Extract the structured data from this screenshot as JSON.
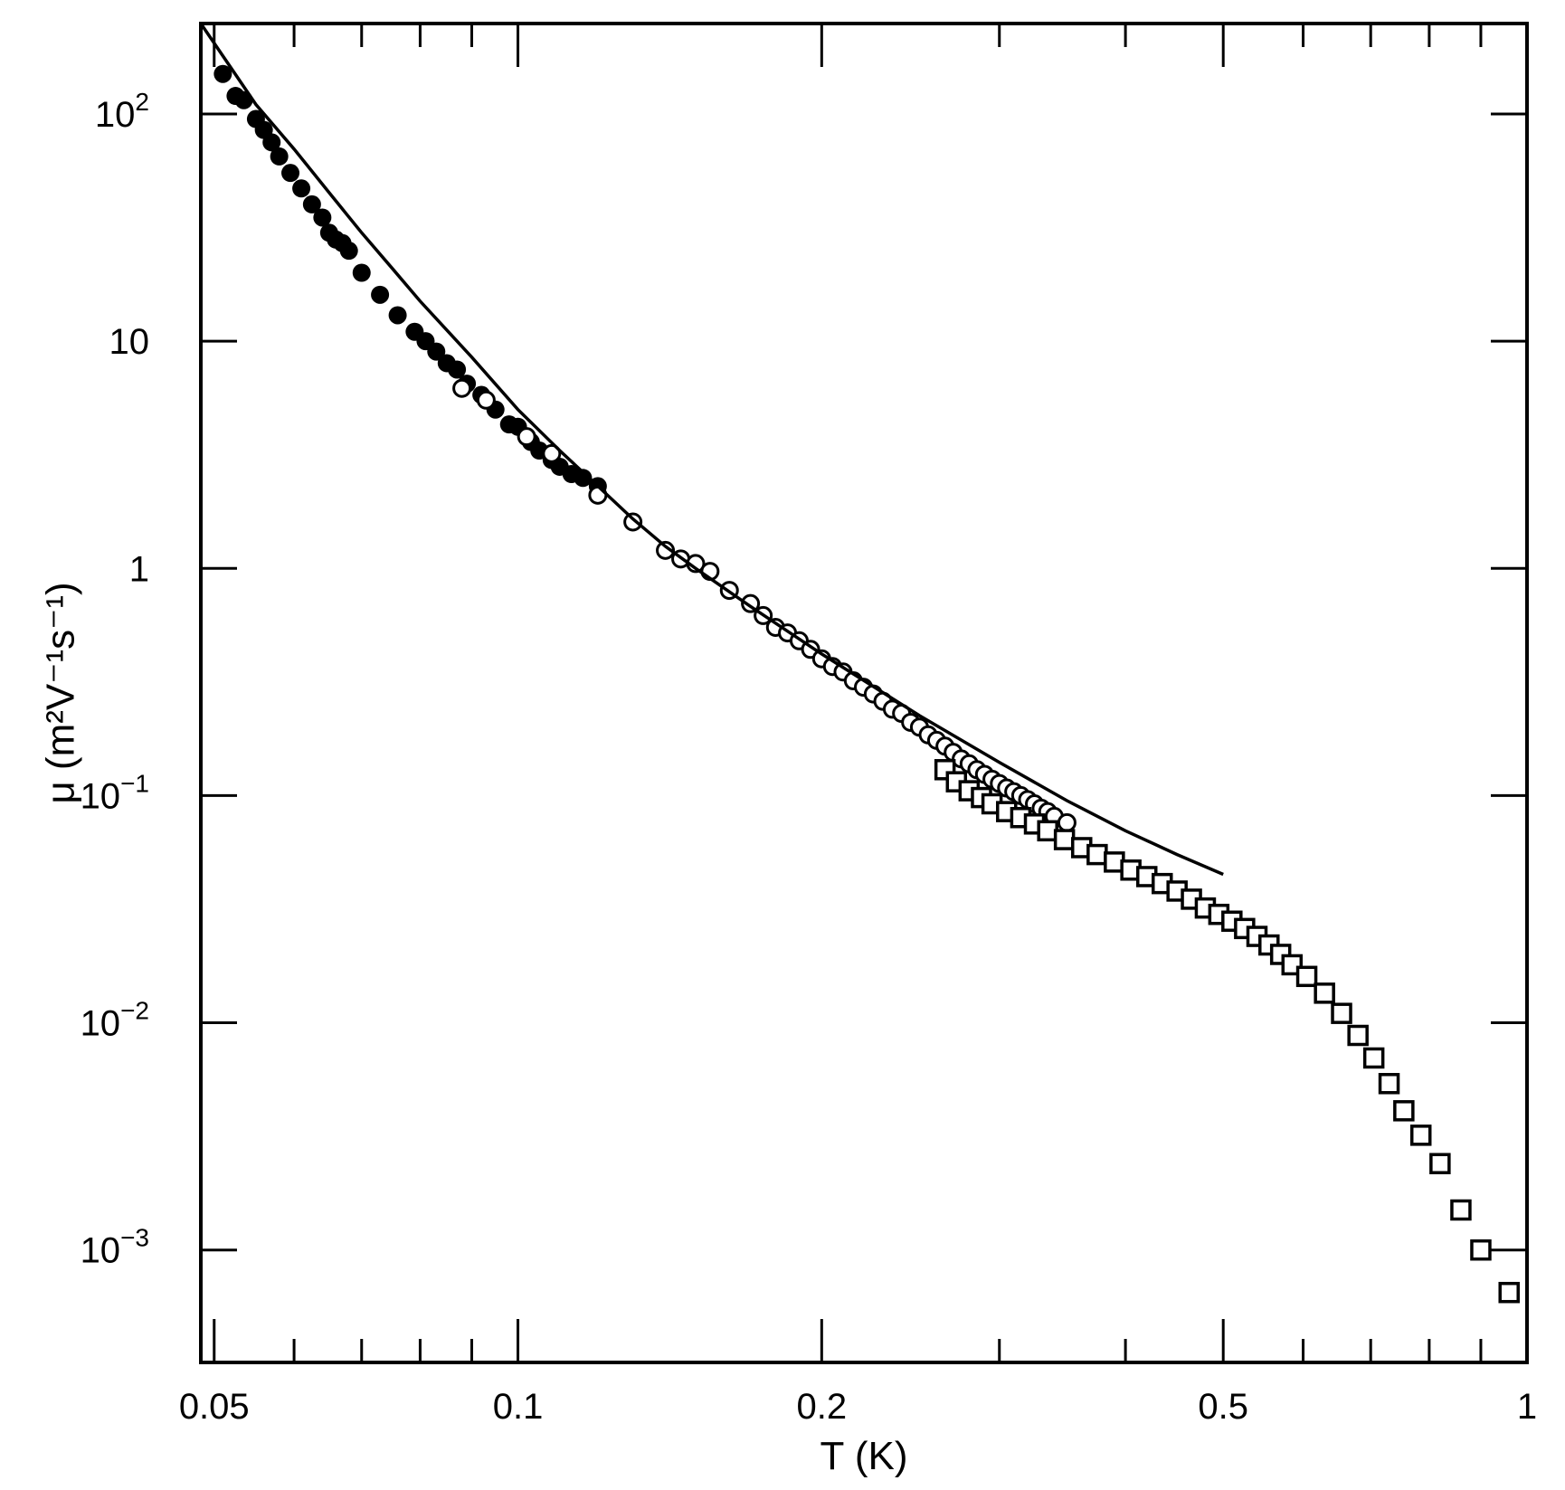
{
  "chart_data": {
    "type": "scatter",
    "title": "",
    "xlabel": "T (K)",
    "ylabel": "μ (m²V⁻¹s⁻¹)",
    "xscale": "log",
    "yscale": "log",
    "xlim": [
      0.0485,
      1.0
    ],
    "ylim": [
      0.00032,
      250
    ],
    "grid": false,
    "x_ticks": [
      {
        "value": 0.05,
        "label": "0.05"
      },
      {
        "value": 0.1,
        "label": "0.1"
      },
      {
        "value": 0.2,
        "label": "0.2"
      },
      {
        "value": 0.5,
        "label": "0.5"
      },
      {
        "value": 1.0,
        "label": "1"
      }
    ],
    "x_minor_ticks": [
      0.06,
      0.07,
      0.08,
      0.09,
      0.3,
      0.4,
      0.6,
      0.7,
      0.8,
      0.9
    ],
    "y_ticks": [
      {
        "value": 100,
        "base": "10",
        "exp": "2"
      },
      {
        "value": 10,
        "base": "10",
        "exp": ""
      },
      {
        "value": 1,
        "base": "1",
        "exp": ""
      },
      {
        "value": 0.1,
        "base": "10",
        "exp": "−1"
      },
      {
        "value": 0.01,
        "base": "10",
        "exp": "−2"
      },
      {
        "value": 0.001,
        "base": "10",
        "exp": "−3"
      }
    ],
    "series": [
      {
        "marker": "filled-circle",
        "x": [
          0.051,
          0.0525,
          0.0535,
          0.055,
          0.056,
          0.057,
          0.058,
          0.0595,
          0.061,
          0.0625,
          0.064,
          0.065,
          0.066,
          0.067,
          0.068,
          0.07,
          0.073,
          0.076,
          0.079,
          0.081,
          0.083,
          0.085,
          0.087,
          0.089,
          0.092,
          0.095,
          0.098,
          0.1,
          0.103,
          0.105,
          0.108,
          0.11,
          0.113,
          0.116,
          0.12
        ],
        "y": [
          150,
          120,
          115,
          95,
          85,
          75,
          65,
          55,
          47,
          40,
          35,
          30,
          28,
          27,
          25,
          20,
          16,
          13,
          11,
          10,
          9,
          8,
          7.5,
          6.5,
          5.8,
          5.0,
          4.3,
          4.2,
          3.6,
          3.3,
          3.0,
          2.8,
          2.6,
          2.5,
          2.3
        ]
      },
      {
        "marker": "open-circle",
        "x": [
          0.088,
          0.093,
          0.102,
          0.108,
          0.12,
          0.13,
          0.14,
          0.145,
          0.15,
          0.155,
          0.162,
          0.17,
          0.175,
          0.18,
          0.185,
          0.19,
          0.195,
          0.2,
          0.205,
          0.21,
          0.215,
          0.22,
          0.225,
          0.23,
          0.235,
          0.24,
          0.245,
          0.25,
          0.255,
          0.26,
          0.265,
          0.27,
          0.275,
          0.28,
          0.285,
          0.29,
          0.295,
          0.3,
          0.305,
          0.31,
          0.315,
          0.32,
          0.325,
          0.33,
          0.335,
          0.34,
          0.35
        ],
        "y": [
          6.2,
          5.5,
          3.8,
          3.2,
          2.1,
          1.6,
          1.2,
          1.1,
          1.05,
          0.97,
          0.8,
          0.7,
          0.62,
          0.55,
          0.52,
          0.48,
          0.44,
          0.4,
          0.37,
          0.35,
          0.32,
          0.3,
          0.28,
          0.26,
          0.24,
          0.23,
          0.21,
          0.2,
          0.185,
          0.175,
          0.165,
          0.155,
          0.145,
          0.138,
          0.13,
          0.124,
          0.118,
          0.113,
          0.108,
          0.104,
          0.1,
          0.096,
          0.092,
          0.088,
          0.085,
          0.081,
          0.076
        ]
      },
      {
        "marker": "open-square",
        "x": [
          0.265,
          0.272,
          0.28,
          0.288,
          0.295,
          0.305,
          0.315,
          0.325,
          0.335,
          0.348,
          0.362,
          0.375,
          0.39,
          0.405,
          0.42,
          0.435,
          0.45,
          0.465,
          0.48,
          0.495,
          0.51,
          0.525,
          0.54,
          0.555,
          0.57,
          0.585,
          0.605,
          0.63,
          0.655,
          0.68,
          0.705,
          0.73,
          0.755,
          0.785,
          0.82,
          0.86,
          0.9,
          0.96
        ],
        "y": [
          0.13,
          0.115,
          0.105,
          0.098,
          0.092,
          0.085,
          0.08,
          0.075,
          0.07,
          0.064,
          0.059,
          0.055,
          0.051,
          0.047,
          0.044,
          0.041,
          0.038,
          0.035,
          0.032,
          0.03,
          0.028,
          0.026,
          0.024,
          0.022,
          0.02,
          0.018,
          0.016,
          0.0135,
          0.011,
          0.0088,
          0.007,
          0.0054,
          0.0041,
          0.0032,
          0.0024,
          0.0015,
          0.001,
          0.00065
        ]
      },
      {
        "marker": "line",
        "x": [
          0.0485,
          0.055,
          0.06,
          0.065,
          0.07,
          0.075,
          0.08,
          0.09,
          0.1,
          0.11,
          0.12,
          0.13,
          0.14,
          0.15,
          0.17,
          0.2,
          0.25,
          0.3,
          0.35,
          0.4,
          0.45,
          0.5
        ],
        "y": [
          250,
          110,
          70,
          45,
          30,
          21,
          15,
          8.5,
          5.0,
          3.3,
          2.3,
          1.65,
          1.25,
          1.0,
          0.68,
          0.42,
          0.225,
          0.14,
          0.095,
          0.07,
          0.055,
          0.045
        ]
      }
    ]
  }
}
